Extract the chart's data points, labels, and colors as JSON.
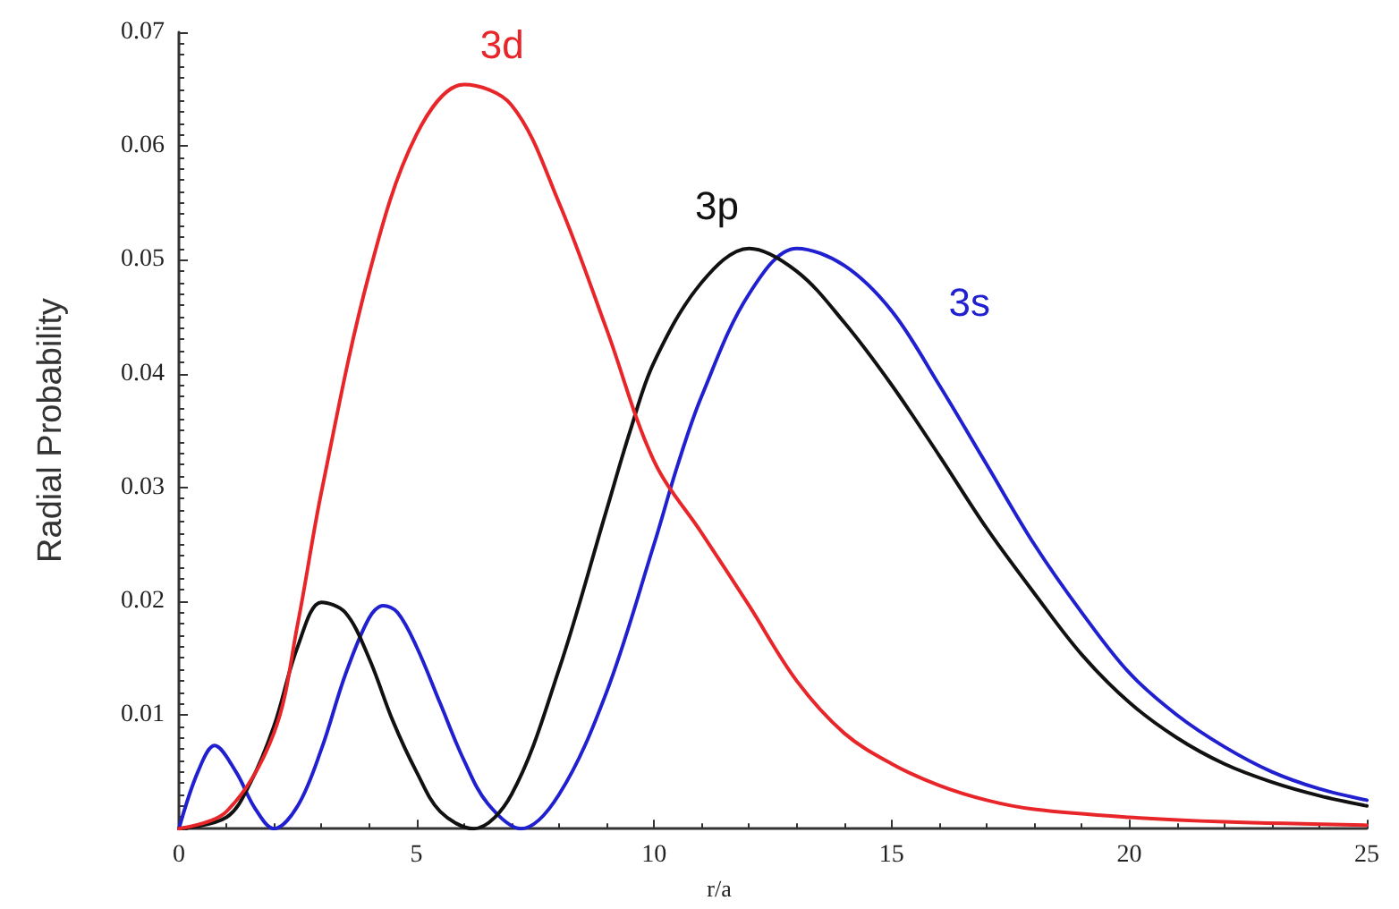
{
  "chart_data": {
    "type": "line",
    "xlabel": "r/a",
    "ylabel": "Radial Probability",
    "xlim": [
      0,
      25
    ],
    "xticks": [
      0,
      5,
      10,
      15,
      20,
      25
    ],
    "ylim": [
      0,
      0.07
    ],
    "yticks": [
      {
        "value": 0,
        "label": null
      },
      0.01,
      0.02,
      0.03,
      0.04,
      0.05,
      0.06,
      0.07
    ],
    "grid": false,
    "legend": false,
    "marker": "none",
    "line_style": "solid",
    "series": [
      {
        "name": "3d",
        "color": "#e8262a",
        "x": [
          0,
          1,
          2,
          2.5,
          3,
          4,
          5,
          6,
          7,
          8,
          9,
          10,
          11,
          12,
          13,
          14,
          15,
          16,
          17,
          18,
          20,
          22,
          25
        ],
        "values": [
          0,
          0.0015,
          0.0084,
          0.018,
          0.0296,
          0.0487,
          0.061,
          0.0654,
          0.0636,
          0.055,
          0.0439,
          0.0323,
          0.026,
          0.0196,
          0.013,
          0.0084,
          0.0057,
          0.0038,
          0.0025,
          0.0017,
          0.001,
          0.0006,
          0.0003
        ]
      },
      {
        "name": "3p",
        "color": "#111111",
        "x": [
          0,
          1,
          1.5,
          2,
          2.5,
          3,
          3.5,
          4,
          4.5,
          5,
          5.5,
          6.2,
          7,
          8,
          9,
          9.5,
          10,
          11,
          12,
          13,
          14,
          15,
          16,
          17,
          18,
          19,
          20,
          21,
          22,
          23,
          24,
          25
        ],
        "values": [
          0,
          0.001,
          0.004,
          0.009,
          0.016,
          0.0199,
          0.019,
          0.015,
          0.0095,
          0.005,
          0.0015,
          0,
          0.003,
          0.014,
          0.028,
          0.035,
          0.041,
          0.048,
          0.051,
          0.049,
          0.0445,
          0.039,
          0.0328,
          0.0264,
          0.0207,
          0.0153,
          0.0111,
          0.008,
          0.0057,
          0.0041,
          0.0029,
          0.002
        ]
      },
      {
        "name": "3s",
        "color": "#2020d0",
        "x": [
          0,
          0.4,
          0.75,
          1.2,
          1.6,
          2,
          2.5,
          3,
          3.5,
          4,
          4.3,
          4.6,
          5,
          5.5,
          6,
          6.5,
          7.2,
          8,
          9,
          10,
          10.5,
          11,
          12,
          13,
          14,
          15,
          16,
          17,
          18,
          19,
          20,
          21,
          22,
          23,
          24,
          25
        ],
        "values": [
          0,
          0.005,
          0.0073,
          0.005,
          0.0018,
          0,
          0.002,
          0.007,
          0.0135,
          0.0185,
          0.0196,
          0.019,
          0.016,
          0.011,
          0.006,
          0.0022,
          0,
          0.003,
          0.012,
          0.025,
          0.032,
          0.038,
          0.047,
          0.051,
          0.0495,
          0.0455,
          0.039,
          0.032,
          0.025,
          0.019,
          0.0137,
          0.01,
          0.0072,
          0.005,
          0.0035,
          0.0025
        ]
      }
    ]
  }
}
